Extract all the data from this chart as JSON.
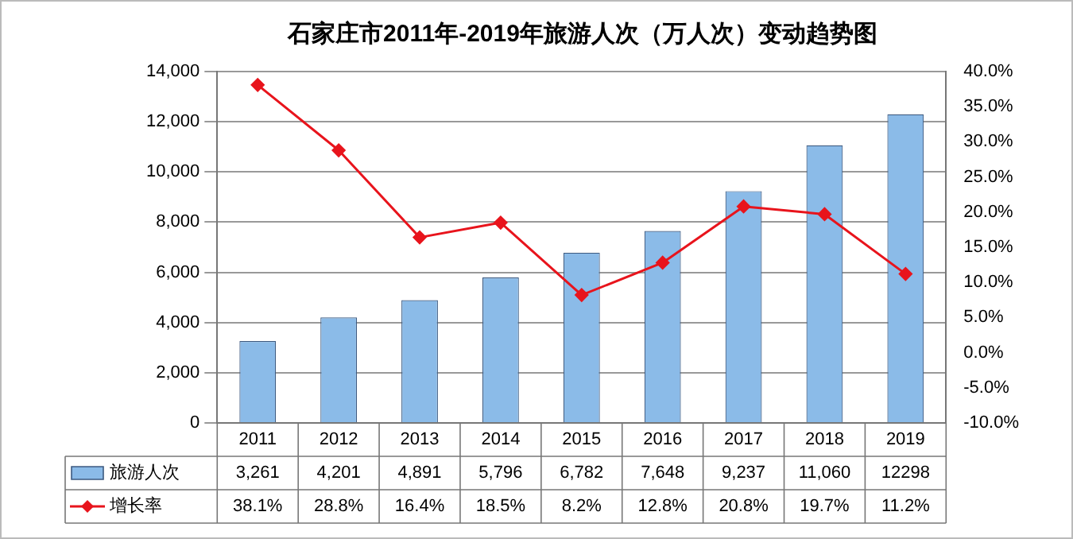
{
  "chart_data": {
    "type": "bar",
    "title": "石家庄市2011年-2019年旅游人次（万人次）变动趋势图",
    "categories": [
      "2011",
      "2012",
      "2013",
      "2014",
      "2015",
      "2016",
      "2017",
      "2018",
      "2019"
    ],
    "series": [
      {
        "name": "旅游人次",
        "color": "#8bbbe8",
        "values": [
          3261,
          4201,
          4891,
          5796,
          6782,
          7648,
          9237,
          11060,
          12298
        ],
        "value_labels": [
          "3,261",
          "4,201",
          "4,891",
          "5,796",
          "6,782",
          "7,648",
          "9,237",
          "11,060",
          "12298"
        ]
      },
      {
        "name": "增长率",
        "type": "line",
        "axis": "y2",
        "color": "#e8141c",
        "marker": "diamond",
        "values": [
          38.1,
          28.8,
          16.4,
          18.5,
          8.2,
          12.8,
          20.8,
          19.7,
          11.2
        ],
        "value_labels": [
          "38.1%",
          "28.8%",
          "16.4%",
          "18.5%",
          "8.2%",
          "12.8%",
          "20.8%",
          "19.7%",
          "11.2%"
        ]
      }
    ],
    "ylim": [
      0,
      14000
    ],
    "yticks": [
      {
        "value": 0,
        "label": "0"
      },
      {
        "value": 2000,
        "label": "2,000"
      },
      {
        "value": 4000,
        "label": "4,000"
      },
      {
        "value": 6000,
        "label": "6,000"
      },
      {
        "value": 8000,
        "label": "8,000"
      },
      {
        "value": 10000,
        "label": "10,000"
      },
      {
        "value": 12000,
        "label": "12,000"
      },
      {
        "value": 14000,
        "label": "14,000"
      }
    ],
    "y2lim": [
      -10,
      40
    ],
    "y2ticks": [
      {
        "value": -10,
        "label": "-10.0%"
      },
      {
        "value": -5,
        "label": "-5.0%"
      },
      {
        "value": 0,
        "label": "0.0%"
      },
      {
        "value": 5,
        "label": "5.0%"
      },
      {
        "value": 10,
        "label": "10.0%"
      },
      {
        "value": 15,
        "label": "15.0%"
      },
      {
        "value": 20,
        "label": "20.0%"
      },
      {
        "value": 25,
        "label": "25.0%"
      },
      {
        "value": 30,
        "label": "30.0%"
      },
      {
        "value": 35,
        "label": "35.0%"
      },
      {
        "value": 40,
        "label": "40.0%"
      }
    ],
    "grid": "y",
    "legend": "bottom left",
    "data_labels": true
  }
}
